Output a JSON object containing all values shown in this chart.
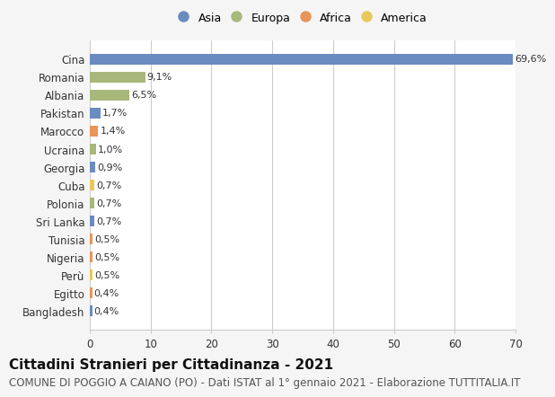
{
  "countries": [
    "Cina",
    "Romania",
    "Albania",
    "Pakistan",
    "Marocco",
    "Ucraina",
    "Georgia",
    "Cuba",
    "Polonia",
    "Sri Lanka",
    "Tunisia",
    "Nigeria",
    "Perù",
    "Egitto",
    "Bangladesh"
  ],
  "values": [
    69.6,
    9.1,
    6.5,
    1.7,
    1.4,
    1.0,
    0.9,
    0.7,
    0.7,
    0.7,
    0.5,
    0.5,
    0.5,
    0.4,
    0.4
  ],
  "labels": [
    "69,6%",
    "9,1%",
    "6,5%",
    "1,7%",
    "1,4%",
    "1,0%",
    "0,9%",
    "0,7%",
    "0,7%",
    "0,7%",
    "0,5%",
    "0,5%",
    "0,5%",
    "0,4%",
    "0,4%"
  ],
  "continents": [
    "Asia",
    "Europa",
    "Europa",
    "Asia",
    "Africa",
    "Europa",
    "Asia",
    "America",
    "Europa",
    "Asia",
    "Africa",
    "Africa",
    "America",
    "Africa",
    "Asia"
  ],
  "continent_colors": {
    "Asia": "#6a8bbf",
    "Europa": "#a8b87a",
    "Africa": "#e8945a",
    "America": "#e8c85a"
  },
  "legend_order": [
    "Asia",
    "Europa",
    "Africa",
    "America"
  ],
  "title": "Cittadini Stranieri per Cittadinanza - 2021",
  "subtitle": "COMUNE DI POGGIO A CAIANO (PO) - Dati ISTAT al 1° gennaio 2021 - Elaborazione TUTTITALIA.IT",
  "xlim": [
    0,
    70
  ],
  "xticks": [
    0,
    10,
    20,
    30,
    40,
    50,
    60,
    70
  ],
  "background_color": "#f5f5f5",
  "plot_bg_color": "#ffffff",
  "grid_color": "#cccccc",
  "bar_height": 0.6,
  "title_fontsize": 11,
  "subtitle_fontsize": 8.5,
  "label_fontsize": 8,
  "tick_fontsize": 8.5,
  "legend_fontsize": 9
}
